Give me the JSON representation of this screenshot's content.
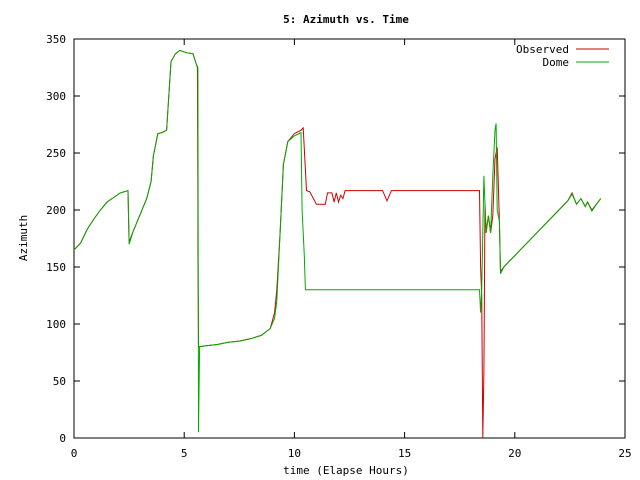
{
  "chart_data": {
    "type": "line",
    "title": "5: Azimuth vs. Time",
    "xlabel": "time (Elapse Hours)",
    "ylabel": "Azimuth",
    "xlim": [
      0,
      25
    ],
    "ylim": [
      0,
      350
    ],
    "xticks": [
      0,
      5,
      10,
      15,
      20,
      25
    ],
    "yticks": [
      0,
      50,
      100,
      150,
      200,
      250,
      300,
      350
    ],
    "grid": false,
    "legend_position": "top-right",
    "series": [
      {
        "name": "Observed",
        "color": "#cc0000",
        "points": [
          [
            0.0,
            165
          ],
          [
            0.3,
            171
          ],
          [
            0.6,
            183
          ],
          [
            0.9,
            192
          ],
          [
            1.2,
            200
          ],
          [
            1.5,
            207
          ],
          [
            1.8,
            211
          ],
          [
            2.1,
            215
          ],
          [
            2.45,
            217
          ],
          [
            2.5,
            172
          ],
          [
            2.7,
            182
          ],
          [
            3.0,
            196
          ],
          [
            3.3,
            210
          ],
          [
            3.5,
            225
          ],
          [
            3.6,
            247
          ],
          [
            3.8,
            267
          ],
          [
            4.0,
            268
          ],
          [
            4.2,
            270
          ],
          [
            4.3,
            300
          ],
          [
            4.4,
            330
          ],
          [
            4.6,
            337
          ],
          [
            4.8,
            340
          ],
          [
            5.1,
            338
          ],
          [
            5.4,
            337
          ],
          [
            5.55,
            328
          ],
          [
            5.6,
            325
          ],
          [
            5.62,
            205
          ],
          [
            5.62,
            168
          ],
          [
            5.65,
            80
          ],
          [
            6.0,
            81
          ],
          [
            6.5,
            82
          ],
          [
            7.0,
            84
          ],
          [
            7.5,
            85
          ],
          [
            8.0,
            87
          ],
          [
            8.5,
            90
          ],
          [
            8.9,
            96
          ],
          [
            9.1,
            110
          ],
          [
            9.2,
            130
          ],
          [
            9.35,
            180
          ],
          [
            9.5,
            240
          ],
          [
            9.7,
            260
          ],
          [
            10.0,
            267
          ],
          [
            10.3,
            270
          ],
          [
            10.4,
            272
          ],
          [
            10.55,
            217
          ],
          [
            10.7,
            216
          ],
          [
            11.0,
            205
          ],
          [
            11.4,
            205
          ],
          [
            11.5,
            215
          ],
          [
            11.7,
            215
          ],
          [
            11.8,
            207
          ],
          [
            11.9,
            215
          ],
          [
            12.0,
            207
          ],
          [
            12.1,
            213
          ],
          [
            12.2,
            210
          ],
          [
            12.3,
            217
          ],
          [
            14.0,
            217
          ],
          [
            14.2,
            208
          ],
          [
            14.4,
            217
          ],
          [
            16.0,
            217
          ],
          [
            18.4,
            217
          ],
          [
            18.45,
            150
          ],
          [
            18.5,
            125
          ],
          [
            18.55,
            0
          ],
          [
            18.6,
            58
          ],
          [
            18.65,
            205
          ],
          [
            18.7,
            180
          ],
          [
            18.8,
            195
          ],
          [
            18.9,
            180
          ],
          [
            19.0,
            195
          ],
          [
            19.1,
            245
          ],
          [
            19.2,
            255
          ],
          [
            19.3,
            190
          ],
          [
            19.35,
            146
          ],
          [
            19.5,
            150
          ],
          [
            20.0,
            160
          ],
          [
            20.5,
            170
          ],
          [
            21.0,
            180
          ],
          [
            21.5,
            190
          ],
          [
            22.0,
            200
          ],
          [
            22.4,
            208
          ],
          [
            22.6,
            215
          ],
          [
            22.8,
            205
          ],
          [
            23.0,
            210
          ],
          [
            23.2,
            203
          ],
          [
            23.3,
            207
          ],
          [
            23.5,
            200
          ],
          [
            23.7,
            205
          ],
          [
            23.9,
            210
          ]
        ]
      },
      {
        "name": "Dome",
        "color": "#00aa00",
        "points": [
          [
            0.0,
            165
          ],
          [
            0.3,
            171
          ],
          [
            0.6,
            183
          ],
          [
            0.9,
            192
          ],
          [
            1.2,
            200
          ],
          [
            1.5,
            207
          ],
          [
            1.8,
            211
          ],
          [
            2.1,
            215
          ],
          [
            2.45,
            217
          ],
          [
            2.5,
            170
          ],
          [
            2.7,
            182
          ],
          [
            3.0,
            196
          ],
          [
            3.3,
            210
          ],
          [
            3.5,
            225
          ],
          [
            3.6,
            247
          ],
          [
            3.8,
            267
          ],
          [
            4.0,
            268
          ],
          [
            4.2,
            270
          ],
          [
            4.3,
            300
          ],
          [
            4.4,
            330
          ],
          [
            4.6,
            337
          ],
          [
            4.8,
            340
          ],
          [
            5.1,
            338
          ],
          [
            5.4,
            337
          ],
          [
            5.55,
            328
          ],
          [
            5.62,
            325
          ],
          [
            5.65,
            5
          ],
          [
            5.7,
            80
          ],
          [
            6.0,
            81
          ],
          [
            6.5,
            82
          ],
          [
            7.0,
            84
          ],
          [
            7.5,
            85
          ],
          [
            8.0,
            87
          ],
          [
            8.5,
            90
          ],
          [
            8.9,
            96
          ],
          [
            9.1,
            105
          ],
          [
            9.2,
            120
          ],
          [
            9.35,
            180
          ],
          [
            9.5,
            240
          ],
          [
            9.7,
            260
          ],
          [
            10.0,
            265
          ],
          [
            10.3,
            268
          ],
          [
            10.35,
            200
          ],
          [
            10.45,
            160
          ],
          [
            10.5,
            130
          ],
          [
            12.0,
            130
          ],
          [
            14.0,
            130
          ],
          [
            16.0,
            130
          ],
          [
            18.4,
            130
          ],
          [
            18.45,
            110
          ],
          [
            18.5,
            130
          ],
          [
            18.6,
            230
          ],
          [
            18.7,
            180
          ],
          [
            18.8,
            195
          ],
          [
            18.9,
            180
          ],
          [
            19.0,
            230
          ],
          [
            19.1,
            270
          ],
          [
            19.15,
            276
          ],
          [
            19.2,
            200
          ],
          [
            19.3,
            190
          ],
          [
            19.35,
            144
          ],
          [
            19.5,
            150
          ],
          [
            20.0,
            160
          ],
          [
            20.5,
            170
          ],
          [
            21.0,
            180
          ],
          [
            21.5,
            190
          ],
          [
            22.0,
            200
          ],
          [
            22.4,
            208
          ],
          [
            22.6,
            214
          ],
          [
            22.8,
            205
          ],
          [
            23.0,
            210
          ],
          [
            23.2,
            203
          ],
          [
            23.3,
            207
          ],
          [
            23.5,
            199
          ],
          [
            23.7,
            205
          ],
          [
            23.9,
            210
          ]
        ]
      }
    ]
  }
}
